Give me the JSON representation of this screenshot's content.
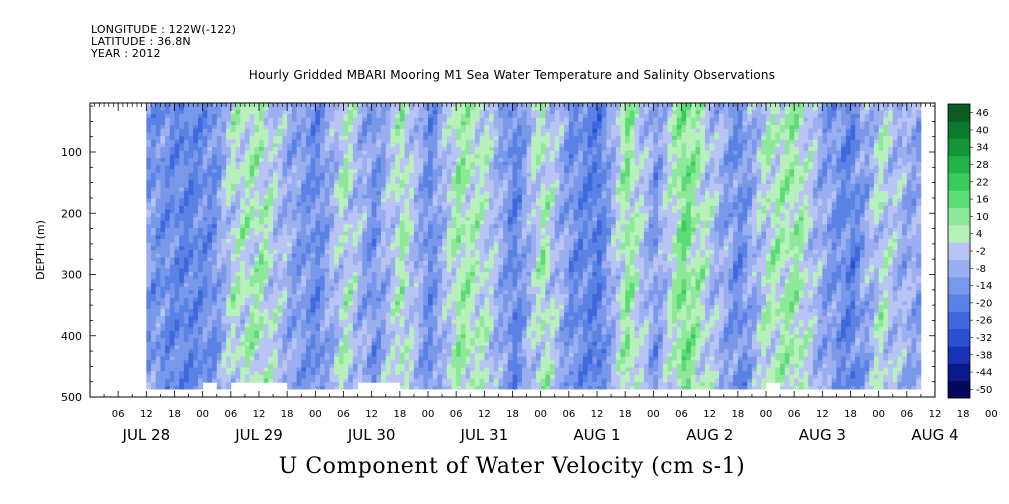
{
  "header": {
    "longitude": "LONGITUDE : 122W(-122)",
    "latitude": "LATITUDE : 36.8N",
    "year": "YEAR : 2012"
  },
  "title": "Hourly Gridded MBARI Mooring M1 Sea Water Temperature and Salinity Observations",
  "footer": "U Component of Water Velocity (cm s-1)",
  "chart_data": {
    "type": "heatmap",
    "title": "Hourly Gridded MBARI Mooring M1 Sea Water Temperature and Salinity Observations",
    "variable": "U Component of Water Velocity (cm s-1)",
    "ylabel": "DEPTH (m)",
    "ylim": [
      500,
      20
    ],
    "y_ticks": [
      100,
      200,
      300,
      400,
      500
    ],
    "y_tick_labels": [
      "100",
      "200",
      "300",
      "400",
      "500"
    ],
    "x_hour_labels": [
      "06",
      "12",
      "18",
      "00",
      "06",
      "12",
      "18",
      "00",
      "06",
      "12",
      "18",
      "00",
      "06",
      "12",
      "18",
      "00",
      "06",
      "12",
      "18",
      "00",
      "06",
      "12",
      "18",
      "00",
      "06",
      "12",
      "18",
      "00",
      "06",
      "12",
      "18",
      "00"
    ],
    "x_day_labels": [
      "JUL 28",
      "JUL 29",
      "JUL 30",
      "JUL 31",
      "AUG  1",
      "AUG  2",
      "AUG  3",
      "AUG  4"
    ],
    "x_range_hours": [
      "2012-07-28 00:00",
      "2012-08-04 12:00"
    ],
    "data_extent_hours": [
      "2012-07-28 12:00",
      "2012-08-04 09:00"
    ],
    "depth_extent_m": [
      20,
      487
    ],
    "colorbar": {
      "levels": [
        -50,
        -44,
        -38,
        -32,
        -26,
        -20,
        -14,
        -8,
        -2,
        4,
        10,
        16,
        22,
        28,
        34,
        40,
        46
      ],
      "labels": [
        "46",
        "40",
        "34",
        "28",
        "22",
        "16",
        "10",
        "4",
        "-2",
        "-8",
        "-14",
        "-20",
        "-26",
        "-32",
        "-38",
        "-44",
        "-50"
      ],
      "colors": [
        "#06085e",
        "#0a1a8a",
        "#1a33b4",
        "#2a4fd2",
        "#3f68dc",
        "#5a82e4",
        "#7a98ea",
        "#9aaef0",
        "#b8c4f4",
        "#b8f0bc",
        "#8ee89a",
        "#5cdc74",
        "#38cc5a",
        "#1fb446",
        "#15953a",
        "#0c7a2e",
        "#0a5c22"
      ]
    },
    "bands": [
      {
        "start": "2012-07-28 12:00",
        "mean": -10,
        "amp": 8
      },
      {
        "start": "2012-07-28 20:00",
        "mean": -16,
        "amp": 6
      },
      {
        "start": "2012-07-29 02:00",
        "mean": -12,
        "amp": 7
      },
      {
        "start": "2012-07-29 06:00",
        "mean": 4,
        "amp": 10
      },
      {
        "start": "2012-07-29 12:00",
        "mean": 8,
        "amp": 10
      },
      {
        "start": "2012-07-29 18:00",
        "mean": -6,
        "amp": 8
      },
      {
        "start": "2012-07-30 00:00",
        "mean": -14,
        "amp": 6
      },
      {
        "start": "2012-07-30 06:00",
        "mean": 6,
        "amp": 10
      },
      {
        "start": "2012-07-30 12:00",
        "mean": -12,
        "amp": 8
      },
      {
        "start": "2012-07-30 18:00",
        "mean": 8,
        "amp": 8
      },
      {
        "start": "2012-07-31 00:00",
        "mean": -14,
        "amp": 6
      },
      {
        "start": "2012-07-31 06:00",
        "mean": 10,
        "amp": 8
      },
      {
        "start": "2012-07-31 12:00",
        "mean": 4,
        "amp": 8
      },
      {
        "start": "2012-07-31 18:00",
        "mean": -16,
        "amp": 6
      },
      {
        "start": "2012-08-01 00:00",
        "mean": 8,
        "amp": 10
      },
      {
        "start": "2012-08-01 06:00",
        "mean": -12,
        "amp": 8
      },
      {
        "start": "2012-08-01 12:00",
        "mean": -18,
        "amp": 6
      },
      {
        "start": "2012-08-01 18:00",
        "mean": 12,
        "amp": 8
      },
      {
        "start": "2012-08-02 00:00",
        "mean": -10,
        "amp": 8
      },
      {
        "start": "2012-08-02 06:00",
        "mean": 16,
        "amp": 8
      },
      {
        "start": "2012-08-02 12:00",
        "mean": 0,
        "amp": 10
      },
      {
        "start": "2012-08-02 18:00",
        "mean": -14,
        "amp": 8
      },
      {
        "start": "2012-08-03 00:00",
        "mean": 6,
        "amp": 10
      },
      {
        "start": "2012-08-03 06:00",
        "mean": 10,
        "amp": 8
      },
      {
        "start": "2012-08-03 12:00",
        "mean": -8,
        "amp": 8
      },
      {
        "start": "2012-08-03 18:00",
        "mean": -16,
        "amp": 8
      },
      {
        "start": "2012-08-04 00:00",
        "mean": 4,
        "amp": 10
      },
      {
        "start": "2012-08-04 06:00",
        "mean": -6,
        "amp": 8
      },
      {
        "start": "2012-08-04 09:00",
        "mean": -6,
        "amp": 8
      }
    ],
    "missing_bottom_segments": [
      {
        "start": "2012-07-29 00:00",
        "end": "2012-07-29 03:00"
      },
      {
        "start": "2012-07-29 06:00",
        "end": "2012-07-29 18:00"
      },
      {
        "start": "2012-07-30 09:00",
        "end": "2012-07-30 18:00"
      },
      {
        "start": "2012-08-03 00:00",
        "end": "2012-08-03 03:00"
      }
    ]
  }
}
